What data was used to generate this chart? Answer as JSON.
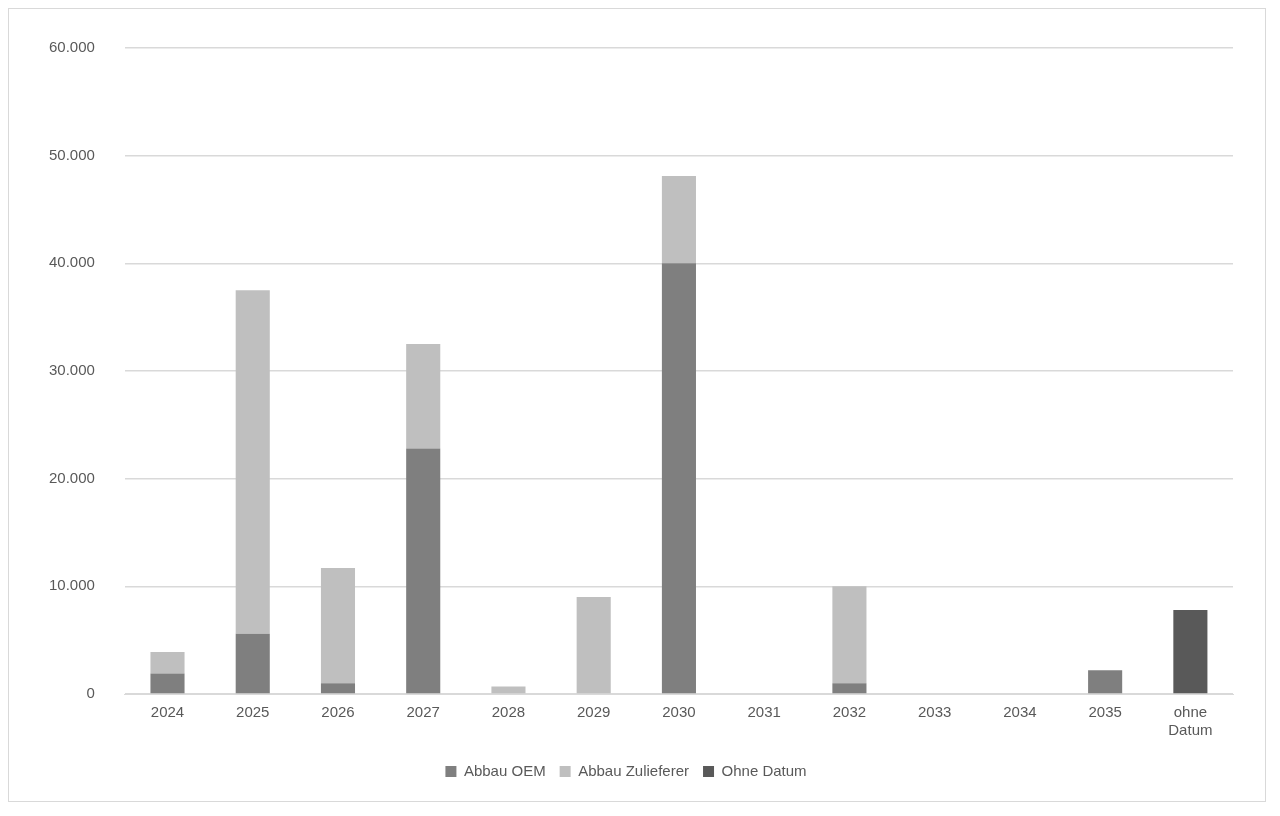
{
  "chart_data": {
    "type": "bar",
    "stacked": true,
    "categories": [
      "2024",
      "2025",
      "2026",
      "2027",
      "2028",
      "2029",
      "2030",
      "2031",
      "2032",
      "2033",
      "2034",
      "2035",
      "ohne Datum"
    ],
    "series": [
      {
        "name": "Abbau OEM",
        "color": "#7f7f7f",
        "values": [
          1900,
          5600,
          1000,
          22800,
          null,
          null,
          40000,
          null,
          1000,
          null,
          null,
          2200,
          null
        ]
      },
      {
        "name": "Abbau Zulieferer",
        "color": "#bfbfbf",
        "values": [
          2000,
          31900,
          10700,
          9700,
          700,
          9000,
          8100,
          null,
          9000,
          null,
          null,
          null,
          null
        ]
      },
      {
        "name": "Ohne Datum",
        "color": "#595959",
        "values": [
          null,
          null,
          null,
          null,
          null,
          null,
          null,
          null,
          null,
          null,
          null,
          null,
          7800
        ]
      }
    ],
    "ylim": [
      0,
      60000
    ],
    "yticks": [
      {
        "value": 0,
        "label": "0"
      },
      {
        "value": 10000,
        "label": "10.000"
      },
      {
        "value": 20000,
        "label": "20.000"
      },
      {
        "value": 30000,
        "label": "30.000"
      },
      {
        "value": 40000,
        "label": "40.000"
      },
      {
        "value": 50000,
        "label": "50.000"
      },
      {
        "value": 60000,
        "label": "60.000"
      }
    ],
    "grid": "y",
    "legend": "bottom"
  }
}
